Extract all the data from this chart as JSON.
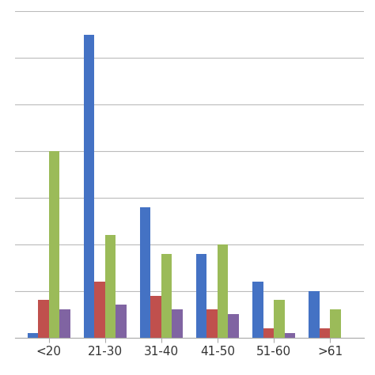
{
  "categories": [
    "<20",
    "21-30",
    "31-40",
    "41-50",
    "51-60",
    ">61"
  ],
  "series": {
    "blue": [
      1,
      65,
      28,
      18,
      12,
      10
    ],
    "red": [
      8,
      12,
      9,
      6,
      2,
      2
    ],
    "green": [
      40,
      22,
      18,
      20,
      8,
      6
    ],
    "purple": [
      6,
      7,
      6,
      5,
      1,
      0
    ]
  },
  "colors": {
    "blue": "#4472C4",
    "red": "#C0504D",
    "green": "#9BBB59",
    "purple": "#8064A2"
  },
  "ylim": [
    0,
    70
  ],
  "yticks": [
    0,
    10,
    20,
    30,
    40,
    50,
    60,
    70
  ],
  "bar_width": 0.19,
  "background_color": "#FFFFFF",
  "grid_color": "#BBBBBB",
  "figsize": [
    4.74,
    4.74
  ],
  "dpi": 100
}
